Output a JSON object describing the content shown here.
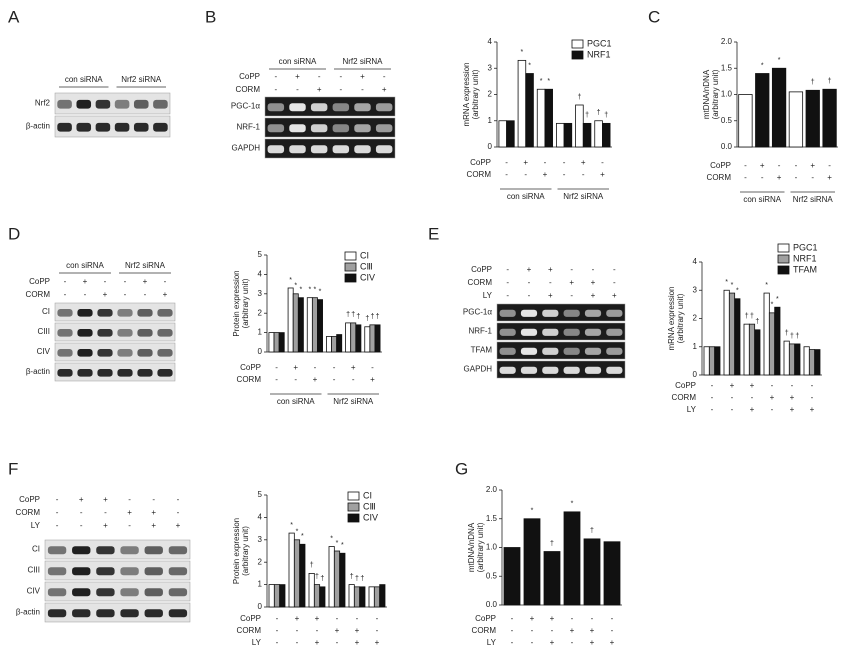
{
  "panel_labels": [
    "A",
    "B",
    "C",
    "D",
    "E",
    "F",
    "G"
  ],
  "blots": [
    {
      "groups": [
        "con siRNA",
        "Nrf2 siRNA"
      ],
      "conditions": [],
      "rows": [
        "Nrf2",
        "β-actin"
      ]
    },
    {
      "groups": [
        "con siRNA",
        "Nrf2 siRNA"
      ],
      "conditions": [
        {
          "name": "CoPP",
          "signs": [
            "-",
            "+",
            "-",
            "-",
            "+",
            "-"
          ]
        },
        {
          "name": "CORM",
          "signs": [
            "-",
            "-",
            "+",
            "-",
            "-",
            "+"
          ]
        }
      ],
      "rows": [
        "PGC-1α",
        "NRF-1",
        "GAPDH"
      ]
    },
    {
      "groups": [
        "con siRNA",
        "Nrf2 siRNA"
      ],
      "conditions": [
        {
          "name": "CoPP",
          "signs": [
            "-",
            "+",
            "-",
            "-",
            "+",
            "-"
          ]
        },
        {
          "name": "CORM",
          "signs": [
            "-",
            "-",
            "+",
            "-",
            "-",
            "+"
          ]
        }
      ],
      "rows": [
        "CI",
        "CIII",
        "CIV",
        "β-actin"
      ]
    },
    {
      "groups": [],
      "conditions": [
        {
          "name": "CoPP",
          "signs": [
            "-",
            "+",
            "+",
            "-",
            "-",
            "-"
          ]
        },
        {
          "name": "CORM",
          "signs": [
            "-",
            "-",
            "-",
            "+",
            "+",
            "-"
          ]
        },
        {
          "name": "LY",
          "signs": [
            "-",
            "-",
            "+",
            "-",
            "+",
            "+"
          ]
        }
      ],
      "rows": [
        "PGC-1α",
        "NRF-1",
        "TFAM",
        "GAPDH"
      ]
    },
    {
      "groups": [],
      "conditions": [
        {
          "name": "CoPP",
          "signs": [
            "-",
            "+",
            "+",
            "-",
            "-",
            "-"
          ]
        },
        {
          "name": "CORM",
          "signs": [
            "-",
            "-",
            "-",
            "+",
            "+",
            "-"
          ]
        },
        {
          "name": "LY",
          "signs": [
            "-",
            "-",
            "+",
            "-",
            "+",
            "+"
          ]
        }
      ],
      "rows": [
        "CI",
        "CIII",
        "CIV",
        "β-actin"
      ]
    }
  ],
  "chart_data": [
    {
      "type": "bar",
      "ylabel": [
        "mRNA expression",
        "(arbitrary unit)"
      ],
      "categories": [
        null,
        null,
        null,
        null,
        null,
        null
      ],
      "series": [
        {
          "name": "PGC1",
          "color": "#ffffff",
          "values": [
            1,
            3.3,
            2.2,
            0.9,
            1.6,
            1.0
          ],
          "annotations": [
            null,
            "*",
            "*",
            null,
            "†",
            "†"
          ]
        },
        {
          "name": "NRF1",
          "color": "#111111",
          "values": [
            1,
            2.8,
            2.2,
            0.9,
            0.9,
            0.9
          ],
          "annotations": [
            null,
            "*",
            "*",
            null,
            "†",
            "†"
          ]
        }
      ],
      "ylim": [
        0,
        4
      ],
      "yticks": [
        0,
        1,
        2,
        3,
        4
      ],
      "conditions": [
        {
          "name": "CoPP",
          "signs": [
            "-",
            "+",
            "-",
            "-",
            "+",
            "-"
          ]
        },
        {
          "name": "CORM",
          "signs": [
            "-",
            "-",
            "+",
            "-",
            "-",
            "+"
          ]
        }
      ],
      "group_labels": [
        "con siRNA",
        "Nrf2 siRNA"
      ]
    },
    {
      "type": "bar",
      "ylabel": [
        "mtDNA/nDNA",
        "(arbitrary unit)"
      ],
      "categories": [
        null,
        null,
        null,
        null,
        null,
        null
      ],
      "values": [
        1.0,
        1.4,
        1.5,
        1.05,
        1.08,
        1.1
      ],
      "colors": [
        "#ffffff",
        "#111111",
        "#111111",
        "#ffffff",
        "#111111",
        "#111111"
      ],
      "annotations": [
        null,
        "*",
        "*",
        null,
        "†",
        "†"
      ],
      "ylim": [
        0,
        2
      ],
      "yticks": [
        {
          "value": 0,
          "label": "0.0"
        },
        0.5,
        {
          "value": 1,
          "label": "1.0"
        },
        1.5,
        {
          "value": 2,
          "label": "2.0"
        }
      ],
      "conditions": [
        {
          "name": "CoPP",
          "signs": [
            "-",
            "+",
            "-",
            "-",
            "+",
            "-"
          ]
        },
        {
          "name": "CORM",
          "signs": [
            "-",
            "-",
            "+",
            "-",
            "-",
            "+"
          ]
        }
      ],
      "group_labels": [
        "con siRNA",
        "Nrf2 siRNA"
      ]
    },
    {
      "type": "bar",
      "ylabel": [
        "Protein expression",
        "(arbitrary unit)"
      ],
      "categories": [
        null,
        null,
        null,
        null,
        null,
        null
      ],
      "series": [
        {
          "name": "CI",
          "color": "#ffffff",
          "values": [
            1,
            3.3,
            2.8,
            0.8,
            1.5,
            1.3
          ],
          "annotations": [
            null,
            "*",
            "*",
            null,
            "†",
            "†"
          ]
        },
        {
          "name": "CⅢ",
          "color": "#a0a0a0",
          "values": [
            1,
            3.0,
            2.8,
            0.8,
            1.5,
            1.4
          ],
          "annotations": [
            null,
            "*",
            "*",
            null,
            "†",
            "†"
          ]
        },
        {
          "name": "CIV",
          "color": "#111111",
          "values": [
            1,
            2.8,
            2.7,
            0.9,
            1.4,
            1.4
          ],
          "annotations": [
            null,
            "*",
            "*",
            null,
            "†",
            "†"
          ]
        }
      ],
      "ylim": [
        0,
        5
      ],
      "yticks": [
        0,
        1,
        2,
        3,
        4,
        5
      ],
      "conditions": [
        {
          "name": "CoPP",
          "signs": [
            "-",
            "+",
            "-",
            "-",
            "+",
            "-"
          ]
        },
        {
          "name": "CORM",
          "signs": [
            "-",
            "-",
            "+",
            "-",
            "-",
            "+"
          ]
        }
      ],
      "group_labels": [
        "con siRNA",
        "Nrf2 siRNA"
      ]
    },
    {
      "type": "bar",
      "ylabel": [
        "mRNA expression",
        "(arbitrary unit)"
      ],
      "categories": [
        null,
        null,
        null,
        null,
        null,
        null
      ],
      "series": [
        {
          "name": "PGC1",
          "color": "#ffffff",
          "values": [
            1,
            3.0,
            1.8,
            2.9,
            1.2,
            1.0
          ],
          "annotations": [
            null,
            "*",
            "†",
            "*",
            "†",
            null
          ]
        },
        {
          "name": "NRF1",
          "color": "#a0a0a0",
          "values": [
            1,
            2.9,
            1.8,
            2.2,
            1.1,
            0.9
          ],
          "annotations": [
            null,
            "*",
            "†",
            "*",
            "†",
            null
          ]
        },
        {
          "name": "TFAM",
          "color": "#111111",
          "values": [
            1,
            2.7,
            1.6,
            2.4,
            1.1,
            0.9
          ],
          "annotations": [
            null,
            "*",
            "†",
            "*",
            "†",
            null
          ]
        }
      ],
      "ylim": [
        0,
        4
      ],
      "yticks": [
        0,
        1,
        2,
        3,
        4
      ],
      "conditions": [
        {
          "name": "CoPP",
          "signs": [
            "-",
            "+",
            "+",
            "-",
            "-",
            "-"
          ]
        },
        {
          "name": "CORM",
          "signs": [
            "-",
            "-",
            "-",
            "+",
            "+",
            "-"
          ]
        },
        {
          "name": "LY",
          "signs": [
            "-",
            "-",
            "+",
            "-",
            "+",
            "+"
          ]
        }
      ],
      "group_labels": []
    },
    {
      "type": "bar",
      "ylabel": [
        "Protein expression",
        "(arbitrary unit)"
      ],
      "categories": [
        null,
        null,
        null,
        null,
        null,
        null
      ],
      "series": [
        {
          "name": "CI",
          "color": "#ffffff",
          "values": [
            1,
            3.3,
            1.5,
            2.7,
            1.0,
            0.9
          ],
          "annotations": [
            null,
            "*",
            "†",
            "*",
            "†",
            null
          ]
        },
        {
          "name": "CⅢ",
          "color": "#a0a0a0",
          "values": [
            1,
            3.0,
            1.0,
            2.5,
            0.9,
            0.9
          ],
          "annotations": [
            null,
            "*",
            "†",
            "*",
            "†",
            null
          ]
        },
        {
          "name": "CIV",
          "color": "#111111",
          "values": [
            1,
            2.8,
            0.9,
            2.4,
            0.9,
            1.0
          ],
          "annotations": [
            null,
            "*",
            "†",
            "*",
            "†",
            null
          ]
        }
      ],
      "ylim": [
        0,
        5
      ],
      "yticks": [
        0,
        1,
        2,
        3,
        4,
        5
      ],
      "conditions": [
        {
          "name": "CoPP",
          "signs": [
            "-",
            "+",
            "+",
            "-",
            "-",
            "-"
          ]
        },
        {
          "name": "CORM",
          "signs": [
            "-",
            "-",
            "-",
            "+",
            "+",
            "-"
          ]
        },
        {
          "name": "LY",
          "signs": [
            "-",
            "-",
            "+",
            "-",
            "+",
            "+"
          ]
        }
      ],
      "group_labels": []
    },
    {
      "type": "bar",
      "ylabel": [
        "mtDNA/nDNA",
        "(arbitrary unit)"
      ],
      "categories": [
        null,
        null,
        null,
        null,
        null,
        null
      ],
      "values": [
        1.0,
        1.5,
        0.93,
        1.62,
        1.15,
        1.1
      ],
      "colors": [
        "#111111",
        "#111111",
        "#111111",
        "#111111",
        "#111111",
        "#111111"
      ],
      "annotations": [
        null,
        "*",
        "†",
        "*",
        "†",
        null
      ],
      "ylim": [
        0,
        2
      ],
      "yticks": [
        {
          "value": 0,
          "label": "0.0"
        },
        0.5,
        {
          "value": 1,
          "label": "1.0"
        },
        1.5,
        {
          "value": 2,
          "label": "2.0"
        }
      ],
      "conditions": [
        {
          "name": "CoPP",
          "signs": [
            "-",
            "+",
            "+",
            "-",
            "-",
            "-"
          ]
        },
        {
          "name": "CORM",
          "signs": [
            "-",
            "-",
            "-",
            "+",
            "+",
            "-"
          ]
        },
        {
          "name": "LY",
          "signs": [
            "-",
            "-",
            "+",
            "-",
            "+",
            "+"
          ]
        }
      ],
      "group_labels": []
    }
  ]
}
